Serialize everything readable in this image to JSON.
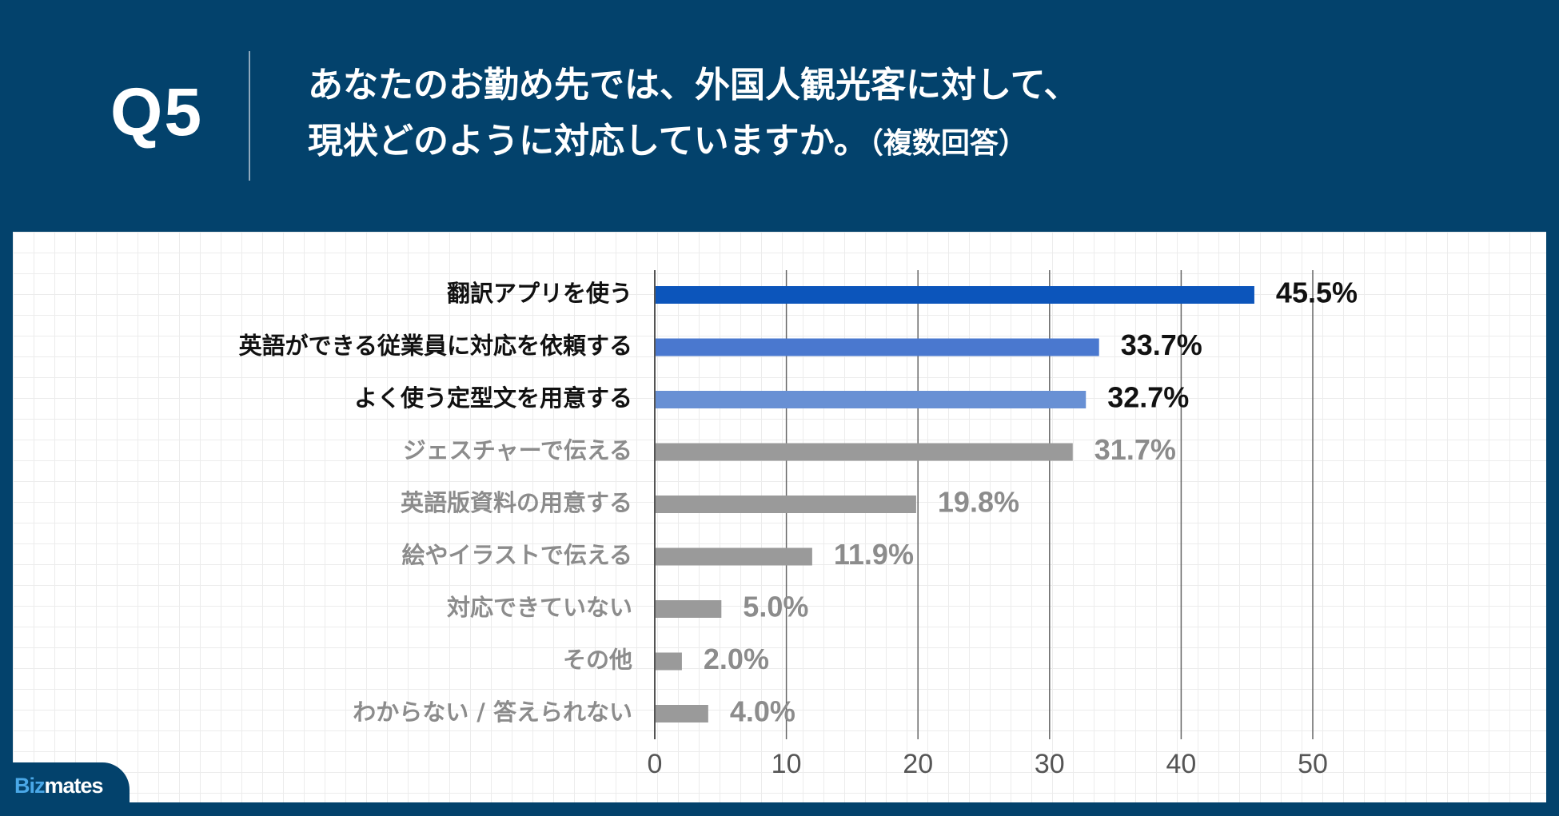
{
  "header": {
    "q_number": "Q5",
    "question_line1": "あなたのお勤め先では、外国人観光客に対して、",
    "question_line2": "現状どのように対応していますか。",
    "question_note": "（複数回答）"
  },
  "brand": {
    "part1": "Biz",
    "part2": "mates"
  },
  "colors": {
    "background": "#03426c",
    "highlight_bar_1": "#0c55bb",
    "highlight_bar_2": "#4a78cf",
    "highlight_bar_3": "#6890d4",
    "other_bar": "#9a9a9a",
    "highlight_text": "#111111",
    "other_text": "#8c8c8c"
  },
  "chart_data": {
    "type": "bar",
    "orientation": "horizontal",
    "title": "",
    "xlabel": "",
    "ylabel": "",
    "xlim": [
      0,
      50
    ],
    "xticks": [
      0,
      10,
      20,
      30,
      40,
      50
    ],
    "grid": true,
    "categories": [
      "翻訳アプリを使う",
      "英語ができる従業員に対応を依頼する",
      "よく使う定型文を用意する",
      "ジェスチャーで伝える",
      "英語版資料の用意する",
      "絵やイラストで伝える",
      "対応できていない",
      "その他",
      "わからない / 答えられない"
    ],
    "values": [
      45.5,
      33.7,
      32.7,
      31.7,
      19.8,
      11.9,
      5.0,
      2.0,
      4.0
    ],
    "value_labels": [
      "45.5%",
      "33.7%",
      "32.7%",
      "31.7%",
      "19.8%",
      "11.9%",
      "5.0%",
      "2.0%",
      "4.0%"
    ],
    "highlighted": [
      true,
      true,
      true,
      false,
      false,
      false,
      false,
      false,
      false
    ]
  }
}
